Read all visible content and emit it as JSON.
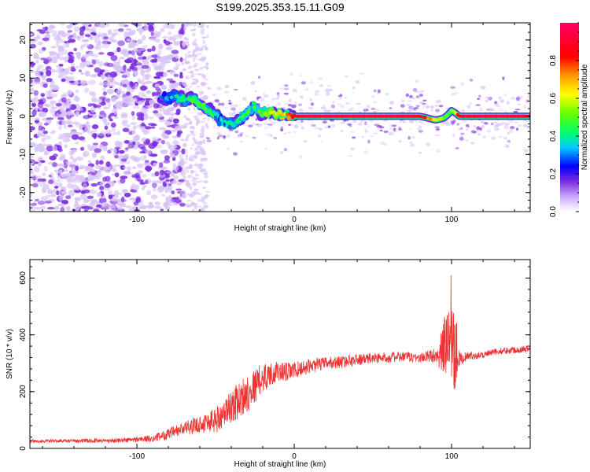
{
  "title": "S199.2025.353.15.11.G09",
  "colors": {
    "snr_line": "#ee3333",
    "spectrum_low": "#7a2be0",
    "spectrum_pale": "#d7c2f5"
  },
  "chart_data": [
    {
      "type": "heatmap",
      "name": "spectrogram",
      "xlabel": "Height of straight line (km)",
      "ylabel": "Frequency (Hz)",
      "xlim": [
        -168,
        150
      ],
      "ylim": [
        -25,
        24.5
      ],
      "x_ticks": [
        -100,
        0,
        100
      ],
      "x_tick_labels": [
        "-100",
        "0",
        "100"
      ],
      "y_ticks": [
        -20,
        -10,
        0,
        10,
        20
      ],
      "y_tick_labels": [
        "-20",
        "-10",
        "0",
        "10",
        "20"
      ],
      "colorbar": {
        "label": "Normalized spectral amplitude",
        "range": [
          0,
          1
        ],
        "ticks": [
          0,
          0.2,
          0.4,
          0.6,
          0.8
        ],
        "tick_labels": [
          "0.0",
          "0.2",
          "0.4",
          "0.6",
          "0.8"
        ]
      },
      "ridge": {
        "x": [
          -85,
          -80,
          -75,
          -70,
          -65,
          -60,
          -55,
          -50,
          -45,
          -40,
          -35,
          -30,
          -25,
          -20,
          -15,
          -10,
          -5,
          0,
          10,
          30,
          50,
          70,
          80,
          90,
          95,
          98,
          100,
          102,
          105,
          110,
          130,
          150
        ],
        "frequency": [
          5,
          4.5,
          5.5,
          4,
          5,
          3,
          2,
          0.5,
          -1.5,
          -2,
          -1,
          1,
          2.5,
          0.5,
          1,
          0.5,
          0.5,
          0,
          0,
          0,
          0,
          0,
          0,
          -1,
          -0.5,
          0.5,
          1.5,
          1,
          0,
          0,
          0,
          0
        ],
        "amplitude": [
          0.25,
          0.3,
          0.35,
          0.4,
          0.4,
          0.45,
          0.4,
          0.35,
          0.35,
          0.35,
          0.4,
          0.45,
          0.45,
          0.5,
          0.55,
          0.6,
          0.7,
          0.85,
          0.9,
          0.9,
          0.9,
          0.9,
          0.85,
          0.6,
          0.5,
          0.45,
          0.5,
          0.6,
          0.85,
          0.9,
          0.9,
          0.9
        ]
      },
      "noise": {
        "dense_region_km": [
          -168,
          -70
        ],
        "sparse_region_km": [
          -70,
          -55
        ],
        "typical_amplitude": 0.1
      }
    },
    {
      "type": "line",
      "name": "snr",
      "xlabel": "Height of straight line (km)",
      "ylabel": "SNR (10 * v/v)",
      "xlim": [
        -168,
        150
      ],
      "ylim": [
        0,
        665
      ],
      "x_ticks": [
        -100,
        0,
        100
      ],
      "x_tick_labels": [
        "-100",
        "0",
        "100"
      ],
      "y_ticks": [
        0,
        200,
        400,
        600
      ],
      "y_tick_labels": [
        "0",
        "200",
        "400",
        "600"
      ],
      "series": [
        {
          "x": [
            -168,
            -150,
            -130,
            -110,
            -90,
            -80,
            -70,
            -60,
            -50,
            -45,
            -40,
            -35,
            -30,
            -25,
            -20,
            -15,
            -10,
            -5,
            0,
            10,
            20,
            30,
            40,
            50,
            60,
            70,
            80,
            90,
            94,
            97,
            100,
            102,
            104,
            106,
            110,
            120,
            130,
            140,
            150
          ],
          "values": [
            25,
            26,
            27,
            28,
            35,
            50,
            70,
            85,
            100,
            120,
            150,
            170,
            195,
            220,
            250,
            262,
            270,
            268,
            275,
            290,
            300,
            305,
            312,
            318,
            320,
            323,
            318,
            330,
            340,
            380,
            450,
            400,
            320,
            315,
            325,
            330,
            342,
            347,
            352
          ],
          "spread": [
            6,
            6,
            7,
            8,
            12,
            20,
            25,
            30,
            50,
            45,
            60,
            65,
            70,
            60,
            55,
            40,
            35,
            35,
            30,
            25,
            22,
            22,
            20,
            20,
            18,
            18,
            18,
            25,
            80,
            150,
            250,
            200,
            40,
            20,
            15,
            12,
            12,
            12,
            12
          ]
        }
      ]
    }
  ]
}
